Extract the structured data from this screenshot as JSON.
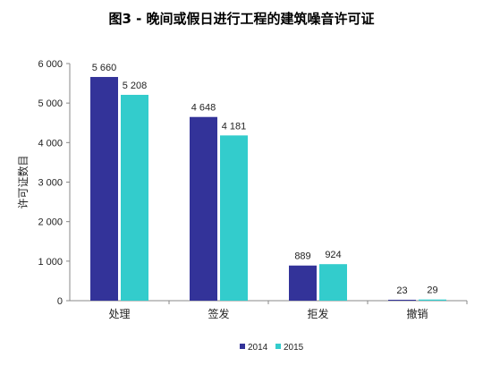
{
  "chart_data": {
    "type": "bar",
    "title": "图3 - 晚间或假日进行工程的建筑噪音许可证",
    "ylabel": "许可证数目",
    "xlabel": "",
    "categories": [
      "处理",
      "签发",
      "拒发",
      "撤销"
    ],
    "series": [
      {
        "name": "2014",
        "values": [
          5660,
          4648,
          889,
          23
        ],
        "labels": [
          "5 660",
          "4 648",
          "889",
          "23"
        ],
        "color": "#333399"
      },
      {
        "name": "2015",
        "values": [
          5208,
          4181,
          924,
          29
        ],
        "labels": [
          "5 208",
          "4 181",
          "924",
          "29"
        ],
        "color": "#33cccc"
      }
    ],
    "ylim": [
      0,
      6000
    ],
    "yticks": [
      0,
      1000,
      2000,
      3000,
      4000,
      5000,
      6000
    ],
    "ytick_labels": [
      "0",
      "1 000",
      "2 000",
      "3 000",
      "4 000",
      "5 000",
      "6 000"
    ],
    "grid": false,
    "legend_position": "bottom"
  }
}
